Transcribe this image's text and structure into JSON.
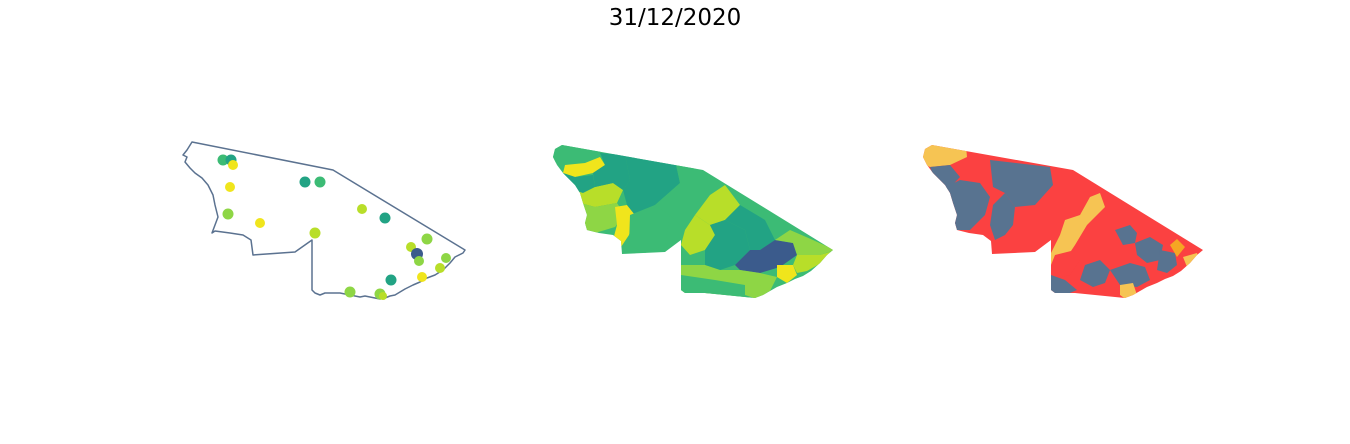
{
  "figure": {
    "title": "31/12/2020"
  },
  "colors": {
    "outline": "#5b7290",
    "viridis_dark_blue": "#3b5b8c",
    "viridis_teal": "#22a384",
    "viridis_green": "#3cbb75",
    "viridis_light_green": "#8ed645",
    "viridis_yellow_green": "#b8de29",
    "viridis_yellow": "#f0e51c",
    "category_red": "#fb4141",
    "category_slate": "#587390",
    "category_gold": "#f6c453",
    "category_orange": "#f5a623"
  },
  "panels": [
    {
      "name": "points-map",
      "type": "bubble-map",
      "markers": 22
    },
    {
      "name": "continuous-choropleth",
      "type": "choropleth",
      "palette": "viridis"
    },
    {
      "name": "categorical-choropleth",
      "type": "choropleth",
      "palette": "red-slate-gold"
    }
  ]
}
